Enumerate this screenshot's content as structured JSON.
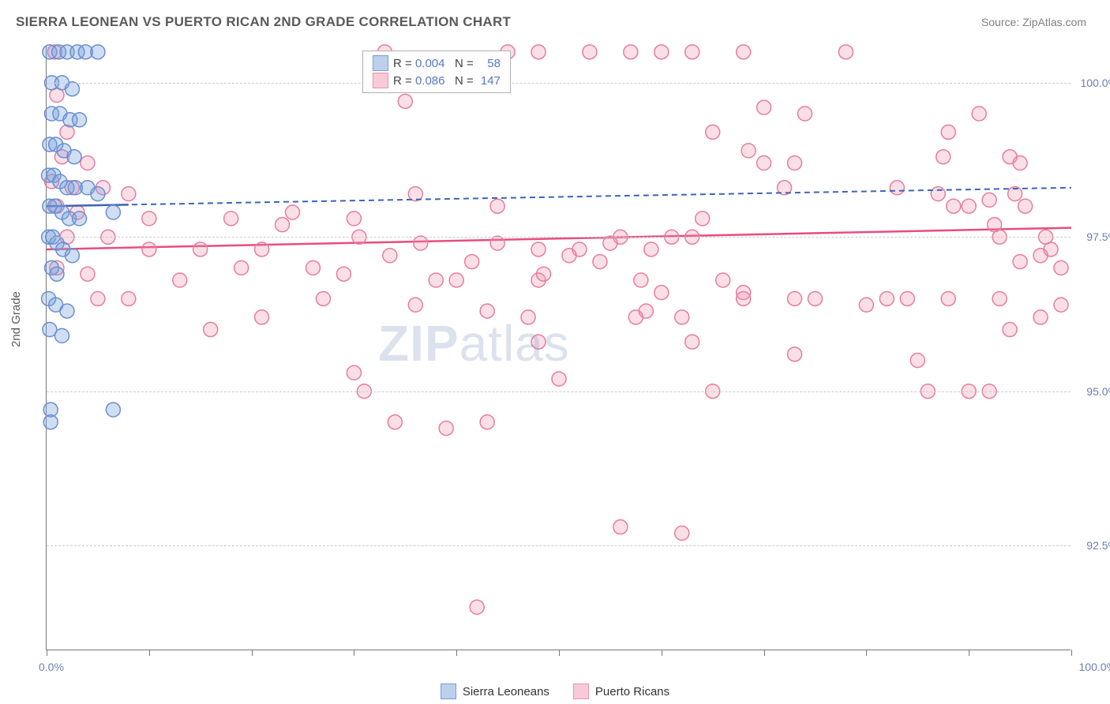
{
  "title": "SIERRA LEONEAN VS PUERTO RICAN 2ND GRADE CORRELATION CHART",
  "source": "Source: ZipAtlas.com",
  "ylabel": "2nd Grade",
  "watermark_bold": "ZIP",
  "watermark_rest": "atlas",
  "chart": {
    "type": "scatter-correlation",
    "background_color": "#ffffff",
    "grid_color": "#cccccc",
    "grid_dash": "4,3",
    "axis_color": "#777777",
    "tick_label_color": "#6b7fb5",
    "tick_fontsize": 14,
    "title_fontsize": 17,
    "title_color": "#5a5a5a",
    "xlim": [
      0,
      100
    ],
    "ylim": [
      90.8,
      100.6
    ],
    "x_ticks": [
      0,
      10,
      20,
      30,
      40,
      50,
      60,
      70,
      80,
      90,
      100
    ],
    "x_tick_labels": {
      "0": "0.0%",
      "100": "100.0%"
    },
    "y_ticks": [
      92.5,
      95.0,
      97.5,
      100.0
    ],
    "y_tick_labels": [
      "92.5%",
      "95.0%",
      "97.5%",
      "100.0%"
    ],
    "marker_radius": 9,
    "marker_stroke_width": 1.5,
    "series": [
      {
        "name": "Sierra Leoneans",
        "fill": "rgba(120,160,220,0.35)",
        "stroke": "#6a8fd0",
        "swatch_fill": "#bcd0ed",
        "swatch_border": "#7a9ed8",
        "R": "0.004",
        "N": "58",
        "trend": {
          "y_start": 98.0,
          "y_end": 98.3,
          "color": "#3c64b5",
          "width": 2,
          "dash": "7,5",
          "solid_until_x": 8
        },
        "points": [
          [
            0.3,
            100.5
          ],
          [
            1.2,
            100.5
          ],
          [
            2.0,
            100.5
          ],
          [
            3.0,
            100.5
          ],
          [
            3.8,
            100.5
          ],
          [
            5.0,
            100.5
          ],
          [
            0.5,
            100.0
          ],
          [
            1.5,
            100.0
          ],
          [
            2.5,
            99.9
          ],
          [
            0.5,
            99.5
          ],
          [
            1.3,
            99.5
          ],
          [
            2.3,
            99.4
          ],
          [
            3.2,
            99.4
          ],
          [
            0.3,
            99.0
          ],
          [
            0.9,
            99.0
          ],
          [
            1.7,
            98.9
          ],
          [
            2.7,
            98.8
          ],
          [
            0.2,
            98.5
          ],
          [
            0.7,
            98.5
          ],
          [
            1.3,
            98.4
          ],
          [
            2.0,
            98.3
          ],
          [
            2.8,
            98.3
          ],
          [
            4.0,
            98.3
          ],
          [
            5.0,
            98.2
          ],
          [
            0.3,
            98.0
          ],
          [
            0.8,
            98.0
          ],
          [
            1.5,
            97.9
          ],
          [
            2.2,
            97.8
          ],
          [
            3.2,
            97.8
          ],
          [
            6.5,
            97.9
          ],
          [
            0.2,
            97.5
          ],
          [
            0.6,
            97.5
          ],
          [
            1.0,
            97.4
          ],
          [
            1.6,
            97.3
          ],
          [
            2.5,
            97.2
          ],
          [
            0.5,
            97.0
          ],
          [
            1.0,
            96.9
          ],
          [
            0.2,
            96.5
          ],
          [
            0.9,
            96.4
          ],
          [
            2.0,
            96.3
          ],
          [
            0.3,
            96.0
          ],
          [
            1.5,
            95.9
          ],
          [
            0.4,
            94.7
          ],
          [
            0.4,
            94.5
          ],
          [
            6.5,
            94.7
          ]
        ]
      },
      {
        "name": "Puerto Ricans",
        "fill": "rgba(240,140,170,0.28)",
        "stroke": "#e77d9e",
        "swatch_fill": "#f8c9d7",
        "swatch_border": "#eb94b0",
        "R": "0.086",
        "N": "147",
        "trend": {
          "y_start": 97.3,
          "y_end": 97.65,
          "color": "#e84d7d",
          "width": 2.5,
          "dash": "none"
        },
        "points": [
          [
            0.8,
            100.5
          ],
          [
            33,
            100.5
          ],
          [
            45,
            100.5
          ],
          [
            48,
            100.5
          ],
          [
            53,
            100.5
          ],
          [
            57,
            100.5
          ],
          [
            60,
            100.5
          ],
          [
            63,
            100.5
          ],
          [
            68,
            100.5
          ],
          [
            78,
            100.5
          ],
          [
            1,
            99.8
          ],
          [
            35,
            99.7
          ],
          [
            70,
            99.6
          ],
          [
            74,
            99.5
          ],
          [
            91,
            99.5
          ],
          [
            2,
            99.2
          ],
          [
            65,
            99.2
          ],
          [
            88,
            99.2
          ],
          [
            1.5,
            98.8
          ],
          [
            4,
            98.7
          ],
          [
            68.5,
            98.9
          ],
          [
            70,
            98.7
          ],
          [
            73,
            98.7
          ],
          [
            87.5,
            98.8
          ],
          [
            94,
            98.8
          ],
          [
            95,
            98.7
          ],
          [
            0.5,
            98.4
          ],
          [
            2.5,
            98.3
          ],
          [
            5.5,
            98.3
          ],
          [
            8,
            98.2
          ],
          [
            36,
            98.2
          ],
          [
            44,
            98.0
          ],
          [
            72,
            98.3
          ],
          [
            83,
            98.3
          ],
          [
            87,
            98.2
          ],
          [
            88.5,
            98.0
          ],
          [
            90,
            98.0
          ],
          [
            92,
            98.1
          ],
          [
            94.5,
            98.2
          ],
          [
            95.5,
            98.0
          ],
          [
            1,
            98.0
          ],
          [
            3,
            97.9
          ],
          [
            10,
            97.8
          ],
          [
            18,
            97.8
          ],
          [
            23,
            97.7
          ],
          [
            24,
            97.9
          ],
          [
            30,
            97.8
          ],
          [
            64,
            97.8
          ],
          [
            92.5,
            97.7
          ],
          [
            2,
            97.5
          ],
          [
            6,
            97.5
          ],
          [
            10,
            97.3
          ],
          [
            15,
            97.3
          ],
          [
            21,
            97.3
          ],
          [
            30.5,
            97.5
          ],
          [
            33.5,
            97.2
          ],
          [
            36.5,
            97.4
          ],
          [
            44,
            97.4
          ],
          [
            48,
            97.3
          ],
          [
            51,
            97.2
          ],
          [
            52,
            97.3
          ],
          [
            54,
            97.1
          ],
          [
            56,
            97.5
          ],
          [
            59,
            97.3
          ],
          [
            61,
            97.5
          ],
          [
            63,
            97.5
          ],
          [
            93,
            97.5
          ],
          [
            97.5,
            97.5
          ],
          [
            97,
            97.2
          ],
          [
            98,
            97.3
          ],
          [
            1,
            97.0
          ],
          [
            4,
            96.9
          ],
          [
            13,
            96.8
          ],
          [
            19,
            97.0
          ],
          [
            26,
            97.0
          ],
          [
            29,
            96.9
          ],
          [
            38,
            96.8
          ],
          [
            40,
            96.8
          ],
          [
            41.5,
            97.1
          ],
          [
            48,
            96.8
          ],
          [
            48.5,
            96.9
          ],
          [
            55,
            97.4
          ],
          [
            58,
            96.8
          ],
          [
            60,
            96.6
          ],
          [
            66,
            96.8
          ],
          [
            68,
            96.6
          ],
          [
            95,
            97.1
          ],
          [
            99,
            97.0
          ],
          [
            5,
            96.5
          ],
          [
            8,
            96.5
          ],
          [
            27,
            96.5
          ],
          [
            36,
            96.4
          ],
          [
            43,
            96.3
          ],
          [
            47,
            96.2
          ],
          [
            57.5,
            96.2
          ],
          [
            58.5,
            96.3
          ],
          [
            62,
            96.2
          ],
          [
            68,
            96.5
          ],
          [
            73,
            96.5
          ],
          [
            75,
            96.5
          ],
          [
            80,
            96.4
          ],
          [
            82,
            96.5
          ],
          [
            84,
            96.5
          ],
          [
            88,
            96.5
          ],
          [
            93,
            96.5
          ],
          [
            97,
            96.2
          ],
          [
            99,
            96.4
          ],
          [
            16,
            96.0
          ],
          [
            21,
            96.2
          ],
          [
            48,
            95.8
          ],
          [
            63,
            95.8
          ],
          [
            73,
            95.6
          ],
          [
            85,
            95.5
          ],
          [
            94,
            96.0
          ],
          [
            30,
            95.3
          ],
          [
            31,
            95.0
          ],
          [
            50,
            95.2
          ],
          [
            65,
            95.0
          ],
          [
            86,
            95.0
          ],
          [
            90,
            95.0
          ],
          [
            92,
            95.0
          ],
          [
            34,
            94.5
          ],
          [
            39,
            94.4
          ],
          [
            43,
            94.5
          ],
          [
            56,
            92.8
          ],
          [
            62,
            92.7
          ],
          [
            42,
            91.5
          ]
        ]
      }
    ],
    "legend_top": {
      "R_label": "R =",
      "N_label": "N =",
      "text_color": "#444",
      "value_color": "#5878c8"
    },
    "legend_bottom_labels": [
      "Sierra Leoneans",
      "Puerto Ricans"
    ]
  }
}
